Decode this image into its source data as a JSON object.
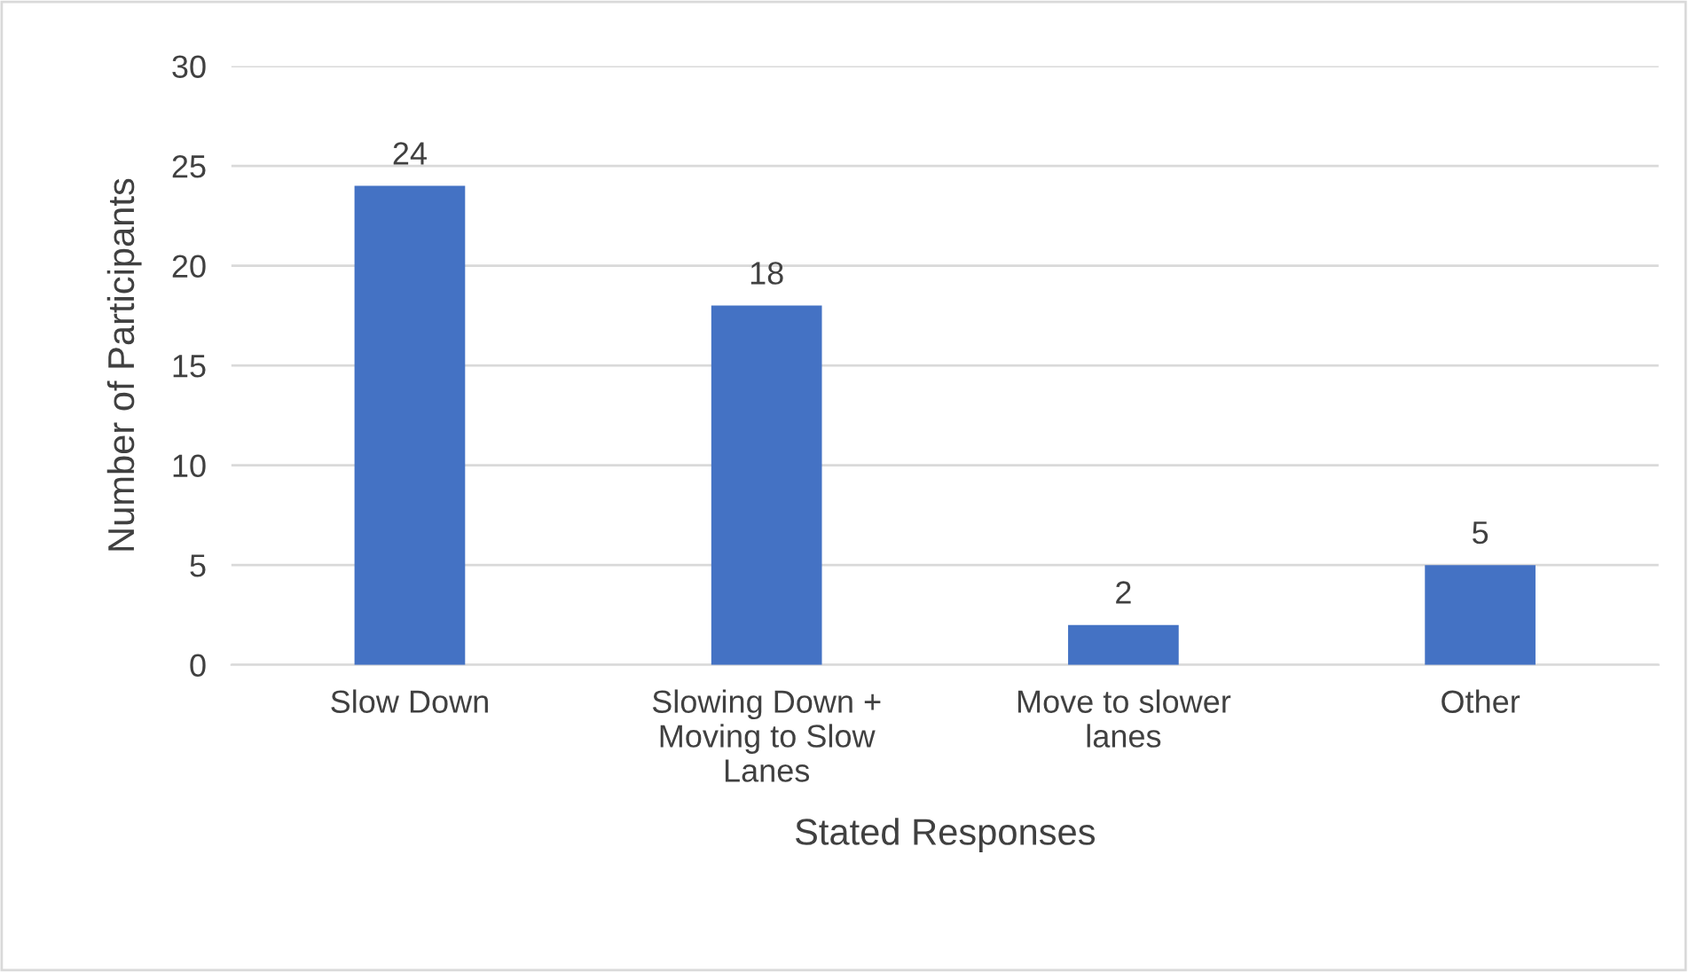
{
  "chart_data": {
    "type": "bar",
    "xlabel": "Stated Responses",
    "ylabel": "Number of Participants",
    "categories": [
      "Slow Down",
      "Slowing Down + Moving to Slow Lanes",
      "Move to slower lanes",
      "Other"
    ],
    "values": [
      24,
      18,
      2,
      5
    ],
    "color": "#4472c4",
    "ylim": [
      0,
      30
    ],
    "yticks": [
      0,
      5,
      10,
      15,
      20,
      25,
      30
    ],
    "grid": "y",
    "data_labels": true
  }
}
